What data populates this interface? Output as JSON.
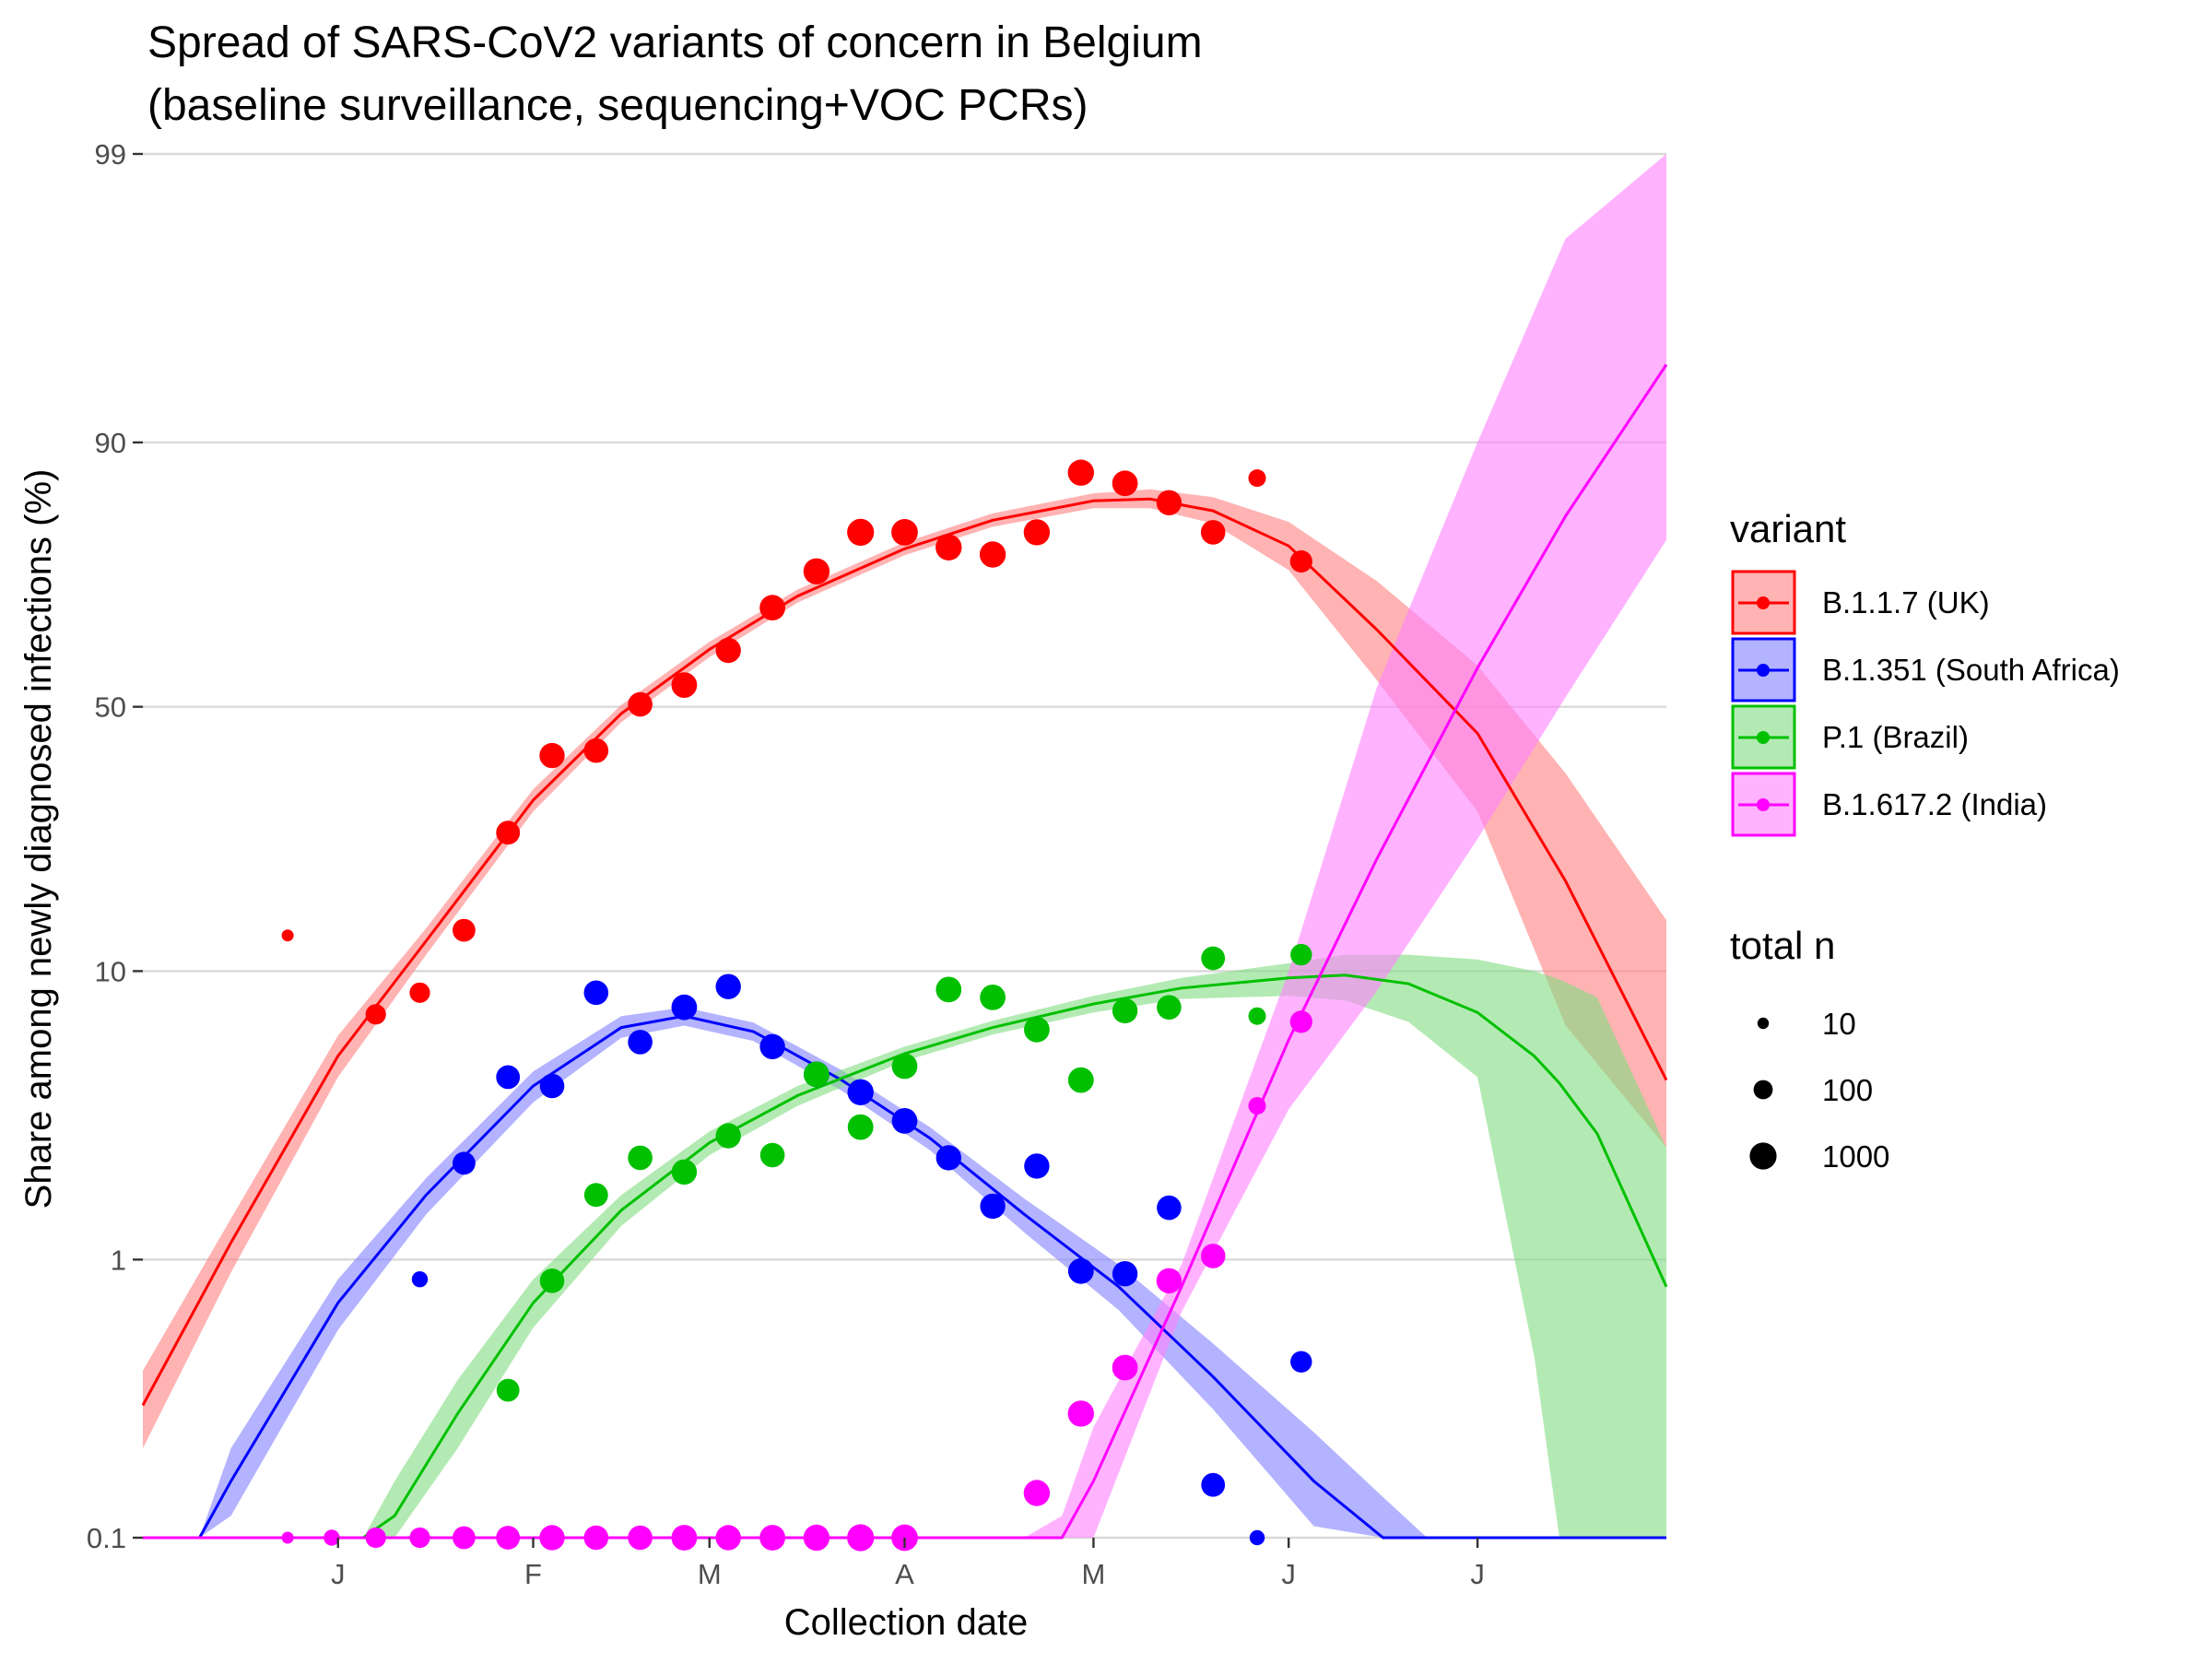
{
  "chart_data": {
    "type": "scatter",
    "title": "Spread of SARS-CoV2 variants of concern in Belgium",
    "subtitle": "(baseline surveillance, sequencing+VOC PCRs)",
    "xlabel": "Collection date",
    "ylabel": "Share among newly diagnosed infections (%)",
    "y_scale": "logit",
    "y_ticks": [
      0.1,
      1,
      10,
      50,
      90,
      99
    ],
    "y_tick_labels": [
      "0.1",
      "1",
      "10",
      "50",
      "90",
      "99"
    ],
    "ylim": [
      0.1,
      99
    ],
    "xlim": [
      "2020-12-01",
      "2021-07-31"
    ],
    "x_ticks": [
      "2021-01-01",
      "2021-02-01",
      "2021-03-01",
      "2021-04-01",
      "2021-05-01",
      "2021-06-01",
      "2021-07-01"
    ],
    "x_tick_labels": [
      "J",
      "F",
      "M",
      "A",
      "M",
      "J",
      "J"
    ],
    "grid": "horizontal major",
    "legend_position": "right",
    "legend_variant_title": "variant",
    "legend_size_title": "total n",
    "size_legend": [
      {
        "n": 10,
        "label": "10"
      },
      {
        "n": 100,
        "label": "100"
      },
      {
        "n": 1000,
        "label": "1000"
      }
    ],
    "series": [
      {
        "name": "B.1.1.7 (UK)",
        "color": "#ff0000",
        "fill": "#ff8080",
        "points": [
          {
            "x": "2020-12-24",
            "y": 13,
            "n": 12
          },
          {
            "x": "2021-01-07",
            "y": 7.2,
            "n": 150
          },
          {
            "x": "2021-01-14",
            "y": 8.5,
            "n": 150
          },
          {
            "x": "2021-01-21",
            "y": 13.5,
            "n": 300
          },
          {
            "x": "2021-01-28",
            "y": 26,
            "n": 400
          },
          {
            "x": "2021-02-04",
            "y": 40,
            "n": 600
          },
          {
            "x": "2021-02-11",
            "y": 41,
            "n": 500
          },
          {
            "x": "2021-02-18",
            "y": 50.5,
            "n": 500
          },
          {
            "x": "2021-02-25",
            "y": 54.5,
            "n": 700
          },
          {
            "x": "2021-03-04",
            "y": 61.5,
            "n": 600
          },
          {
            "x": "2021-03-11",
            "y": 69.5,
            "n": 700
          },
          {
            "x": "2021-03-18",
            "y": 75.5,
            "n": 800
          },
          {
            "x": "2021-03-25",
            "y": 81,
            "n": 1000
          },
          {
            "x": "2021-04-01",
            "y": 81,
            "n": 900
          },
          {
            "x": "2021-04-08",
            "y": 79,
            "n": 800
          },
          {
            "x": "2021-04-15",
            "y": 78,
            "n": 800
          },
          {
            "x": "2021-04-22",
            "y": 81,
            "n": 800
          },
          {
            "x": "2021-04-29",
            "y": 87.5,
            "n": 800
          },
          {
            "x": "2021-05-06",
            "y": 86.5,
            "n": 700
          },
          {
            "x": "2021-05-13",
            "y": 84.5,
            "n": 600
          },
          {
            "x": "2021-05-20",
            "y": 81,
            "n": 500
          },
          {
            "x": "2021-05-27",
            "y": 87,
            "n": 60
          },
          {
            "x": "2021-06-03",
            "y": 77,
            "n": 250
          }
        ],
        "fit": [
          {
            "x": "2020-12-01",
            "y": 0.3,
            "lo": 0.21,
            "hi": 0.4
          },
          {
            "x": "2020-12-15",
            "y": 1.15,
            "lo": 0.9,
            "hi": 1.4
          },
          {
            "x": "2021-01-01",
            "y": 5.2,
            "lo": 4.4,
            "hi": 6.1
          },
          {
            "x": "2021-01-15",
            "y": 12.5,
            "lo": 11.3,
            "hi": 13.7
          },
          {
            "x": "2021-02-01",
            "y": 31.5,
            "lo": 29.5,
            "hi": 33.5
          },
          {
            "x": "2021-02-15",
            "y": 48.6,
            "lo": 46.8,
            "hi": 50.4
          },
          {
            "x": "2021-03-01",
            "y": 61.7,
            "lo": 60.2,
            "hi": 63.2
          },
          {
            "x": "2021-03-15",
            "y": 71.5,
            "lo": 70.4,
            "hi": 72.6
          },
          {
            "x": "2021-04-01",
            "y": 78.8,
            "lo": 77.9,
            "hi": 79.7
          },
          {
            "x": "2021-04-15",
            "y": 82.5,
            "lo": 81.7,
            "hi": 83.3
          },
          {
            "x": "2021-05-01",
            "y": 84.7,
            "lo": 83.9,
            "hi": 85.5
          },
          {
            "x": "2021-05-10",
            "y": 84.9,
            "lo": 83.9,
            "hi": 85.9
          },
          {
            "x": "2021-05-20",
            "y": 83.6,
            "lo": 82.1,
            "hi": 85.1
          },
          {
            "x": "2021-06-01",
            "y": 79.2,
            "lo": 75.7,
            "hi": 82.3
          },
          {
            "x": "2021-06-15",
            "y": 65.5,
            "lo": 55.5,
            "hi": 74
          },
          {
            "x": "2021-07-01",
            "y": 44.5,
            "lo": 29.5,
            "hi": 58.5
          },
          {
            "x": "2021-07-15",
            "y": 19,
            "lo": 6.6,
            "hi": 36.5
          },
          {
            "x": "2021-07-31",
            "y": 4.3,
            "lo": 2.5,
            "hi": 14.5
          }
        ]
      },
      {
        "name": "B.1.351 (South Africa)",
        "color": "#0000ff",
        "fill": "#8080ff",
        "points": [
          {
            "x": "2021-01-14",
            "y": 0.85,
            "n": 40
          },
          {
            "x": "2021-01-21",
            "y": 2.2,
            "n": 300
          },
          {
            "x": "2021-01-28",
            "y": 4.4,
            "n": 400
          },
          {
            "x": "2021-02-04",
            "y": 4.1,
            "n": 500
          },
          {
            "x": "2021-02-11",
            "y": 8.5,
            "n": 500
          },
          {
            "x": "2021-02-18",
            "y": 5.8,
            "n": 500
          },
          {
            "x": "2021-02-25",
            "y": 7.6,
            "n": 700
          },
          {
            "x": "2021-03-04",
            "y": 8.9,
            "n": 600
          },
          {
            "x": "2021-03-11",
            "y": 5.6,
            "n": 600
          },
          {
            "x": "2021-03-18",
            "y": 4.5,
            "n": 700
          },
          {
            "x": "2021-03-25",
            "y": 3.9,
            "n": 800
          },
          {
            "x": "2021-04-01",
            "y": 3.1,
            "n": 700
          },
          {
            "x": "2021-04-08",
            "y": 2.3,
            "n": 600
          },
          {
            "x": "2021-04-15",
            "y": 1.55,
            "n": 600
          },
          {
            "x": "2021-04-22",
            "y": 2.15,
            "n": 600
          },
          {
            "x": "2021-04-29",
            "y": 0.91,
            "n": 700
          },
          {
            "x": "2021-05-06",
            "y": 0.89,
            "n": 600
          },
          {
            "x": "2021-05-13",
            "y": 1.53,
            "n": 500
          },
          {
            "x": "2021-05-20",
            "y": 0.155,
            "n": 400
          },
          {
            "x": "2021-05-27",
            "y": 0.1,
            "n": 30
          },
          {
            "x": "2021-06-03",
            "y": 0.43,
            "n": 200
          }
        ],
        "fit": [
          {
            "x": "2020-12-10",
            "y": 0.1,
            "lo": 0.1,
            "hi": 0.1
          },
          {
            "x": "2020-12-15",
            "y": 0.16,
            "lo": 0.12,
            "hi": 0.21
          },
          {
            "x": "2021-01-01",
            "y": 0.7,
            "lo": 0.56,
            "hi": 0.85
          },
          {
            "x": "2021-01-15",
            "y": 1.7,
            "lo": 1.45,
            "hi": 1.95
          },
          {
            "x": "2021-02-01",
            "y": 4.1,
            "lo": 3.6,
            "hi": 4.6
          },
          {
            "x": "2021-02-15",
            "y": 6.5,
            "lo": 6,
            "hi": 7.1
          },
          {
            "x": "2021-02-25",
            "y": 7.1,
            "lo": 6.6,
            "hi": 7.6
          },
          {
            "x": "2021-03-08",
            "y": 6.3,
            "lo": 5.85,
            "hi": 6.75
          },
          {
            "x": "2021-03-22",
            "y": 4.3,
            "lo": 3.95,
            "hi": 4.65
          },
          {
            "x": "2021-04-05",
            "y": 2.7,
            "lo": 2.45,
            "hi": 2.95
          },
          {
            "x": "2021-04-20",
            "y": 1.45,
            "lo": 1.25,
            "hi": 1.65
          },
          {
            "x": "2021-05-05",
            "y": 0.8,
            "lo": 0.66,
            "hi": 0.96
          },
          {
            "x": "2021-05-20",
            "y": 0.38,
            "lo": 0.29,
            "hi": 0.5
          },
          {
            "x": "2021-06-05",
            "y": 0.16,
            "lo": 0.11,
            "hi": 0.24
          },
          {
            "x": "2021-06-16",
            "y": 0.1,
            "lo": 0.1,
            "hi": 0.14
          },
          {
            "x": "2021-06-23",
            "y": 0.1,
            "lo": 0.1,
            "hi": 0.1
          },
          {
            "x": "2021-07-31",
            "y": 0.1,
            "lo": 0.1,
            "hi": 0.1
          }
        ]
      },
      {
        "name": "P.1 (Brazil)",
        "color": "#00c000",
        "fill": "#80dc80",
        "points": [
          {
            "x": "2021-01-28",
            "y": 0.34,
            "n": 300
          },
          {
            "x": "2021-02-04",
            "y": 0.84,
            "n": 500
          },
          {
            "x": "2021-02-11",
            "y": 1.7,
            "n": 400
          },
          {
            "x": "2021-02-18",
            "y": 2.3,
            "n": 500
          },
          {
            "x": "2021-02-25",
            "y": 2.05,
            "n": 600
          },
          {
            "x": "2021-03-04",
            "y": 2.75,
            "n": 600
          },
          {
            "x": "2021-03-11",
            "y": 2.35,
            "n": 500
          },
          {
            "x": "2021-03-18",
            "y": 4.5,
            "n": 700
          },
          {
            "x": "2021-03-25",
            "y": 2.95,
            "n": 700
          },
          {
            "x": "2021-04-01",
            "y": 4.8,
            "n": 700
          },
          {
            "x": "2021-04-08",
            "y": 8.7,
            "n": 700
          },
          {
            "x": "2021-04-15",
            "y": 8.2,
            "n": 700
          },
          {
            "x": "2021-04-22",
            "y": 6.4,
            "n": 700
          },
          {
            "x": "2021-04-29",
            "y": 4.3,
            "n": 700
          },
          {
            "x": "2021-05-06",
            "y": 7.4,
            "n": 600
          },
          {
            "x": "2021-05-13",
            "y": 7.6,
            "n": 500
          },
          {
            "x": "2021-05-20",
            "y": 11,
            "n": 400
          },
          {
            "x": "2021-05-27",
            "y": 7.1,
            "n": 60
          },
          {
            "x": "2021-06-03",
            "y": 11.3,
            "n": 200
          }
        ],
        "fit": [
          {
            "x": "2021-01-05",
            "y": 0.1,
            "lo": 0.1,
            "hi": 0.1
          },
          {
            "x": "2021-01-10",
            "y": 0.12,
            "lo": 0.1,
            "hi": 0.16
          },
          {
            "x": "2021-01-20",
            "y": 0.28,
            "lo": 0.21,
            "hi": 0.37
          },
          {
            "x": "2021-02-01",
            "y": 0.7,
            "lo": 0.57,
            "hi": 0.85
          },
          {
            "x": "2021-02-15",
            "y": 1.5,
            "lo": 1.32,
            "hi": 1.7
          },
          {
            "x": "2021-03-01",
            "y": 2.6,
            "lo": 2.35,
            "hi": 2.85
          },
          {
            "x": "2021-03-15",
            "y": 3.8,
            "lo": 3.5,
            "hi": 4.1
          },
          {
            "x": "2021-04-01",
            "y": 5.3,
            "lo": 5,
            "hi": 5.6
          },
          {
            "x": "2021-04-15",
            "y": 6.5,
            "lo": 6.15,
            "hi": 6.85
          },
          {
            "x": "2021-05-01",
            "y": 7.8,
            "lo": 7.3,
            "hi": 8.3
          },
          {
            "x": "2021-05-15",
            "y": 8.8,
            "lo": 8.1,
            "hi": 9.5
          },
          {
            "x": "2021-06-01",
            "y": 9.5,
            "lo": 8.3,
            "hi": 10.6
          },
          {
            "x": "2021-06-10",
            "y": 9.7,
            "lo": 8,
            "hi": 11.3
          },
          {
            "x": "2021-06-20",
            "y": 9.1,
            "lo": 6.8,
            "hi": 11.3
          },
          {
            "x": "2021-07-01",
            "y": 7.3,
            "lo": 4.4,
            "hi": 10.9
          },
          {
            "x": "2021-07-10",
            "y": 5.2,
            "lo": 0.45,
            "hi": 10
          },
          {
            "x": "2021-07-14",
            "y": 4.2,
            "lo": 0.1,
            "hi": 9.4
          },
          {
            "x": "2021-07-20",
            "y": 2.8,
            "lo": 0.1,
            "hi": 8.2
          },
          {
            "x": "2021-07-31",
            "y": 0.8,
            "lo": 0.1,
            "hi": 2.5
          }
        ]
      },
      {
        "name": "B.1.617.2 (India)",
        "color": "#ff00ff",
        "fill": "#ff80ff",
        "points": [
          {
            "x": "2020-12-24",
            "y": 0.1,
            "n": 12
          },
          {
            "x": "2020-12-31",
            "y": 0.1,
            "n": 40
          },
          {
            "x": "2021-01-07",
            "y": 0.1,
            "n": 150
          },
          {
            "x": "2021-01-14",
            "y": 0.1,
            "n": 150
          },
          {
            "x": "2021-01-21",
            "y": 0.1,
            "n": 300
          },
          {
            "x": "2021-01-28",
            "y": 0.1,
            "n": 400
          },
          {
            "x": "2021-02-04",
            "y": 0.1,
            "n": 600
          },
          {
            "x": "2021-02-11",
            "y": 0.1,
            "n": 500
          },
          {
            "x": "2021-02-18",
            "y": 0.1,
            "n": 500
          },
          {
            "x": "2021-02-25",
            "y": 0.1,
            "n": 700
          },
          {
            "x": "2021-03-04",
            "y": 0.1,
            "n": 600
          },
          {
            "x": "2021-03-11",
            "y": 0.1,
            "n": 700
          },
          {
            "x": "2021-03-18",
            "y": 0.1,
            "n": 800
          },
          {
            "x": "2021-03-25",
            "y": 0.1,
            "n": 1000
          },
          {
            "x": "2021-04-01",
            "y": 0.1,
            "n": 900
          },
          {
            "x": "2021-04-22",
            "y": 0.145,
            "n": 800
          },
          {
            "x": "2021-04-29",
            "y": 0.28,
            "n": 800
          },
          {
            "x": "2021-05-06",
            "y": 0.41,
            "n": 700
          },
          {
            "x": "2021-05-13",
            "y": 0.84,
            "n": 600
          },
          {
            "x": "2021-05-20",
            "y": 1.03,
            "n": 500
          },
          {
            "x": "2021-05-27",
            "y": 3.5,
            "n": 60
          },
          {
            "x": "2021-06-03",
            "y": 6.8,
            "n": 250
          }
        ],
        "fit": [
          {
            "x": "2020-12-01",
            "y": 0.1,
            "lo": 0.1,
            "hi": 0.1
          },
          {
            "x": "2021-04-20",
            "y": 0.1,
            "lo": 0.1,
            "hi": 0.1
          },
          {
            "x": "2021-04-26",
            "y": 0.1,
            "lo": 0.1,
            "hi": 0.12
          },
          {
            "x": "2021-05-01",
            "y": 0.16,
            "lo": 0.1,
            "hi": 0.25
          },
          {
            "x": "2021-05-15",
            "y": 0.8,
            "lo": 0.65,
            "hi": 0.96
          },
          {
            "x": "2021-06-01",
            "y": 5.9,
            "lo": 3.4,
            "hi": 10
          },
          {
            "x": "2021-06-15",
            "y": 22,
            "lo": 8.6,
            "hi": 54
          },
          {
            "x": "2021-07-01",
            "y": 58,
            "lo": 25,
            "hi": 90
          },
          {
            "x": "2021-07-15",
            "y": 83,
            "lo": 52,
            "hi": 98
          },
          {
            "x": "2021-07-31",
            "y": 94.5,
            "lo": 80,
            "hi": 99
          }
        ]
      }
    ]
  }
}
